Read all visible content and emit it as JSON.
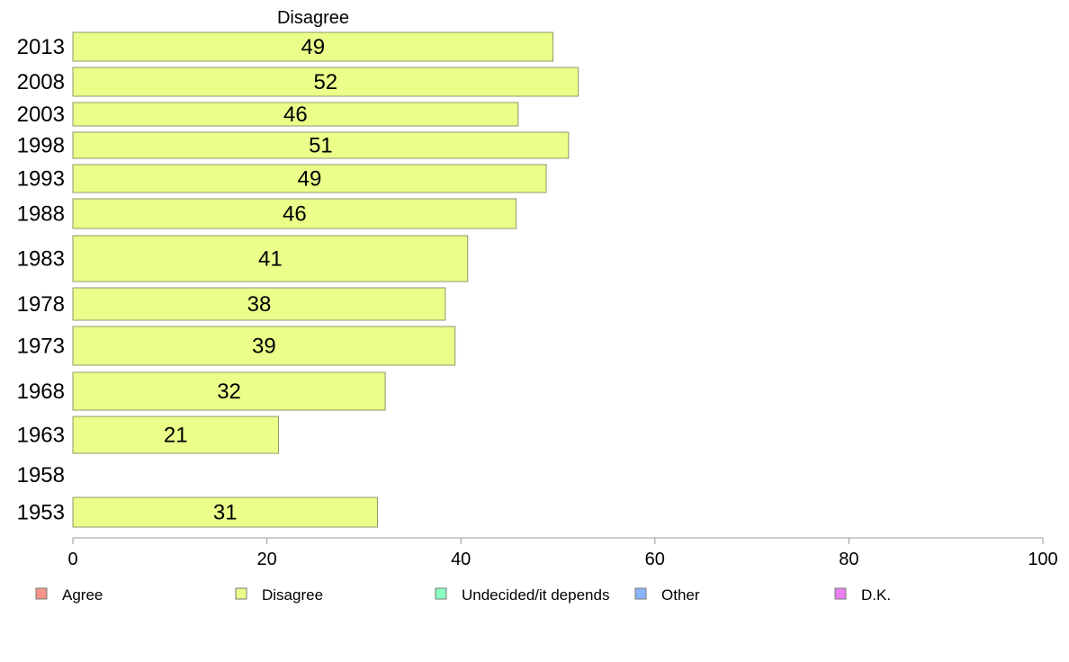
{
  "chart_data": {
    "type": "bar",
    "orientation": "horizontal",
    "series_title": "Disagree",
    "categories": [
      "2013",
      "2008",
      "2003",
      "1998",
      "1993",
      "1988",
      "1983",
      "1978",
      "1973",
      "1968",
      "1963",
      "1958",
      "1953"
    ],
    "series": [
      {
        "name": "Disagree",
        "color": "#eaff8a",
        "values": [
          49.5,
          52.1,
          45.9,
          51.1,
          48.8,
          45.7,
          40.7,
          38.4,
          39.4,
          32.2,
          21.2,
          null,
          31.4
        ],
        "labels": [
          "49",
          "52",
          "46",
          "51",
          "49",
          "46",
          "41",
          "38",
          "39",
          "32",
          "21",
          "",
          "31"
        ]
      }
    ],
    "xlim": [
      0,
      100
    ],
    "xticks": [
      "0",
      "20",
      "40",
      "60",
      "80",
      "100"
    ],
    "grid": false,
    "legend": {
      "placement": "bottom",
      "items": [
        {
          "label": "Agree",
          "color": "#f4948a"
        },
        {
          "label": "Disagree",
          "color": "#eaff8a"
        },
        {
          "label": "Undecided/it depends",
          "color": "#8affc2"
        },
        {
          "label": "Other",
          "color": "#8ab4f8"
        },
        {
          "label": "D.K.",
          "color": "#e880f0"
        }
      ]
    }
  }
}
